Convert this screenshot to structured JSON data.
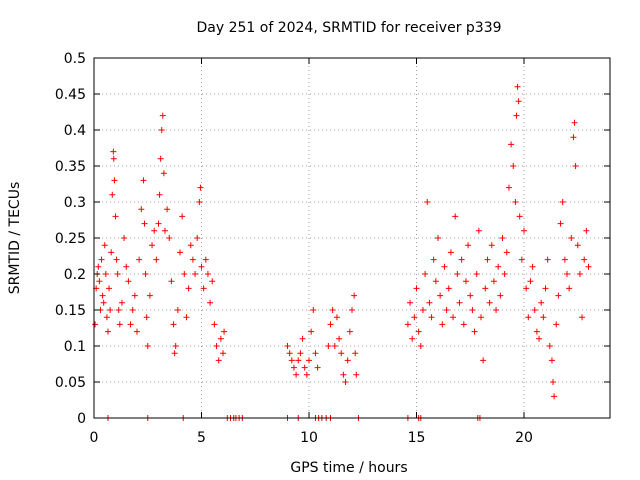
{
  "chart_data": {
    "type": "scatter",
    "title": "Day 251 of 2024, SRMTID for receiver p339",
    "xlabel": "GPS time / hours",
    "ylabel": "SRMTID / TECUs",
    "xlim": [
      0,
      24
    ],
    "ylim": [
      0,
      0.5
    ],
    "xticks": [
      0,
      5,
      10,
      15,
      20
    ],
    "xtick_labels": [
      "0",
      "5",
      "10",
      "15",
      "20"
    ],
    "yticks": [
      0,
      0.05,
      0.1,
      0.15,
      0.2,
      0.25,
      0.3,
      0.35,
      0.4,
      0.45,
      0.5
    ],
    "ytick_labels": [
      "0",
      "0.05",
      "0.1",
      "0.15",
      "0.2",
      "0.25",
      "0.3",
      "0.35",
      "0.4",
      "0.45",
      "0.5"
    ],
    "grid": true,
    "marker": "+",
    "marker_color": "#ff0000",
    "series": [
      {
        "name": "SRMTID",
        "points": [
          [
            0.05,
            0.13
          ],
          [
            0.1,
            0.18
          ],
          [
            0.15,
            0.2
          ],
          [
            0.2,
            0.21
          ],
          [
            0.25,
            0.19
          ],
          [
            0.3,
            0.15
          ],
          [
            0.35,
            0.22
          ],
          [
            0.4,
            0.17
          ],
          [
            0.45,
            0.16
          ],
          [
            0.5,
            0.24
          ],
          [
            0.55,
            0.2
          ],
          [
            0.6,
            0.14
          ],
          [
            0.65,
            0.12
          ],
          [
            0.7,
            0.18
          ],
          [
            0.75,
            0.15
          ],
          [
            0.8,
            0.23
          ],
          [
            0.85,
            0.31
          ],
          [
            0.9,
            0.37
          ],
          [
            0.92,
            0.36
          ],
          [
            0.95,
            0.33
          ],
          [
            1.0,
            0.28
          ],
          [
            1.05,
            0.22
          ],
          [
            1.1,
            0.2
          ],
          [
            1.15,
            0.15
          ],
          [
            1.2,
            0.13
          ],
          [
            1.3,
            0.16
          ],
          [
            1.4,
            0.25
          ],
          [
            1.5,
            0.21
          ],
          [
            1.6,
            0.19
          ],
          [
            1.7,
            0.13
          ],
          [
            1.8,
            0.15
          ],
          [
            1.9,
            0.17
          ],
          [
            2.0,
            0.12
          ],
          [
            2.1,
            0.22
          ],
          [
            2.2,
            0.29
          ],
          [
            2.3,
            0.33
          ],
          [
            2.35,
            0.27
          ],
          [
            2.4,
            0.2
          ],
          [
            2.45,
            0.14
          ],
          [
            2.5,
            0.1
          ],
          [
            2.6,
            0.17
          ],
          [
            2.7,
            0.24
          ],
          [
            2.8,
            0.26
          ],
          [
            2.9,
            0.22
          ],
          [
            3.0,
            0.27
          ],
          [
            3.05,
            0.31
          ],
          [
            3.1,
            0.36
          ],
          [
            3.15,
            0.4
          ],
          [
            3.2,
            0.42
          ],
          [
            3.25,
            0.34
          ],
          [
            3.3,
            0.26
          ],
          [
            3.4,
            0.29
          ],
          [
            3.5,
            0.25
          ],
          [
            3.6,
            0.19
          ],
          [
            3.7,
            0.13
          ],
          [
            3.75,
            0.09
          ],
          [
            3.8,
            0.1
          ],
          [
            3.9,
            0.15
          ],
          [
            4.0,
            0.23
          ],
          [
            4.1,
            0.28
          ],
          [
            4.2,
            0.2
          ],
          [
            4.3,
            0.14
          ],
          [
            4.4,
            0.18
          ],
          [
            4.5,
            0.24
          ],
          [
            4.6,
            0.22
          ],
          [
            4.7,
            0.2
          ],
          [
            4.8,
            0.25
          ],
          [
            4.9,
            0.3
          ],
          [
            4.95,
            0.32
          ],
          [
            5.0,
            0.21
          ],
          [
            5.1,
            0.18
          ],
          [
            5.2,
            0.22
          ],
          [
            5.3,
            0.2
          ],
          [
            5.4,
            0.16
          ],
          [
            5.5,
            0.19
          ],
          [
            5.6,
            0.13
          ],
          [
            5.7,
            0.1
          ],
          [
            5.8,
            0.08
          ],
          [
            5.9,
            0.11
          ],
          [
            6.0,
            0.09
          ],
          [
            6.05,
            0.12
          ],
          [
            9.0,
            0.1
          ],
          [
            9.1,
            0.09
          ],
          [
            9.2,
            0.08
          ],
          [
            9.3,
            0.07
          ],
          [
            9.4,
            0.06
          ],
          [
            9.5,
            0.08
          ],
          [
            9.6,
            0.09
          ],
          [
            9.7,
            0.11
          ],
          [
            9.8,
            0.07
          ],
          [
            9.9,
            0.06
          ],
          [
            10.0,
            0.08
          ],
          [
            10.1,
            0.12
          ],
          [
            10.2,
            0.15
          ],
          [
            10.3,
            0.09
          ],
          [
            10.4,
            0.07
          ],
          [
            10.9,
            0.1
          ],
          [
            11.0,
            0.13
          ],
          [
            11.1,
            0.15
          ],
          [
            11.2,
            0.1
          ],
          [
            11.3,
            0.14
          ],
          [
            11.4,
            0.11
          ],
          [
            11.5,
            0.09
          ],
          [
            11.6,
            0.06
          ],
          [
            11.7,
            0.05
          ],
          [
            11.8,
            0.08
          ],
          [
            11.9,
            0.12
          ],
          [
            12.0,
            0.15
          ],
          [
            12.1,
            0.17
          ],
          [
            12.15,
            0.09
          ],
          [
            12.2,
            0.06
          ],
          [
            14.6,
            0.13
          ],
          [
            14.7,
            0.16
          ],
          [
            14.8,
            0.11
          ],
          [
            14.9,
            0.14
          ],
          [
            15.0,
            0.18
          ],
          [
            15.1,
            0.12
          ],
          [
            15.2,
            0.1
          ],
          [
            15.3,
            0.15
          ],
          [
            15.4,
            0.2
          ],
          [
            15.5,
            0.3
          ],
          [
            15.6,
            0.16
          ],
          [
            15.7,
            0.14
          ],
          [
            15.8,
            0.22
          ],
          [
            15.9,
            0.19
          ],
          [
            16.0,
            0.25
          ],
          [
            16.1,
            0.17
          ],
          [
            16.2,
            0.13
          ],
          [
            16.3,
            0.21
          ],
          [
            16.4,
            0.15
          ],
          [
            16.5,
            0.18
          ],
          [
            16.6,
            0.23
          ],
          [
            16.7,
            0.14
          ],
          [
            16.8,
            0.28
          ],
          [
            16.9,
            0.2
          ],
          [
            17.0,
            0.16
          ],
          [
            17.1,
            0.22
          ],
          [
            17.2,
            0.13
          ],
          [
            17.3,
            0.19
          ],
          [
            17.4,
            0.24
          ],
          [
            17.5,
            0.17
          ],
          [
            17.6,
            0.15
          ],
          [
            17.7,
            0.12
          ],
          [
            17.8,
            0.2
          ],
          [
            17.9,
            0.26
          ],
          [
            18.0,
            0.14
          ],
          [
            18.1,
            0.08
          ],
          [
            18.2,
            0.18
          ],
          [
            18.3,
            0.22
          ],
          [
            18.4,
            0.16
          ],
          [
            18.5,
            0.24
          ],
          [
            18.6,
            0.19
          ],
          [
            18.7,
            0.15
          ],
          [
            18.8,
            0.21
          ],
          [
            18.9,
            0.17
          ],
          [
            19.0,
            0.25
          ],
          [
            19.1,
            0.2
          ],
          [
            19.2,
            0.23
          ],
          [
            19.3,
            0.32
          ],
          [
            19.4,
            0.38
          ],
          [
            19.5,
            0.35
          ],
          [
            19.6,
            0.3
          ],
          [
            19.65,
            0.42
          ],
          [
            19.7,
            0.46
          ],
          [
            19.75,
            0.44
          ],
          [
            19.8,
            0.28
          ],
          [
            19.9,
            0.22
          ],
          [
            20.0,
            0.26
          ],
          [
            20.1,
            0.18
          ],
          [
            20.2,
            0.14
          ],
          [
            20.3,
            0.19
          ],
          [
            20.4,
            0.21
          ],
          [
            20.5,
            0.15
          ],
          [
            20.6,
            0.12
          ],
          [
            20.7,
            0.11
          ],
          [
            20.8,
            0.16
          ],
          [
            20.9,
            0.14
          ],
          [
            21.0,
            0.18
          ],
          [
            21.1,
            0.22
          ],
          [
            21.2,
            0.1
          ],
          [
            21.3,
            0.08
          ],
          [
            21.35,
            0.05
          ],
          [
            21.4,
            0.03
          ],
          [
            21.5,
            0.13
          ],
          [
            21.6,
            0.17
          ],
          [
            21.7,
            0.27
          ],
          [
            21.8,
            0.3
          ],
          [
            21.9,
            0.22
          ],
          [
            22.0,
            0.2
          ],
          [
            22.1,
            0.18
          ],
          [
            22.2,
            0.25
          ],
          [
            22.3,
            0.39
          ],
          [
            22.35,
            0.41
          ],
          [
            22.4,
            0.35
          ],
          [
            22.5,
            0.24
          ],
          [
            22.6,
            0.2
          ],
          [
            22.7,
            0.14
          ],
          [
            22.8,
            0.22
          ],
          [
            22.9,
            0.26
          ],
          [
            23.0,
            0.21
          ]
        ]
      },
      {
        "name": "SRMTID zero values",
        "points": [
          [
            0.65,
            0
          ],
          [
            2.5,
            0
          ],
          [
            4.15,
            0
          ],
          [
            6.2,
            0
          ],
          [
            6.35,
            0
          ],
          [
            6.5,
            0
          ],
          [
            6.6,
            0
          ],
          [
            6.75,
            0
          ],
          [
            6.9,
            0
          ],
          [
            9.0,
            0
          ],
          [
            9.5,
            0
          ],
          [
            10.3,
            0
          ],
          [
            10.45,
            0
          ],
          [
            10.6,
            0
          ],
          [
            10.8,
            0
          ],
          [
            11.0,
            0
          ],
          [
            12.3,
            0
          ],
          [
            14.6,
            0
          ],
          [
            15.1,
            0
          ],
          [
            15.2,
            0
          ],
          [
            17.85,
            0
          ],
          [
            17.95,
            0
          ]
        ]
      }
    ]
  }
}
